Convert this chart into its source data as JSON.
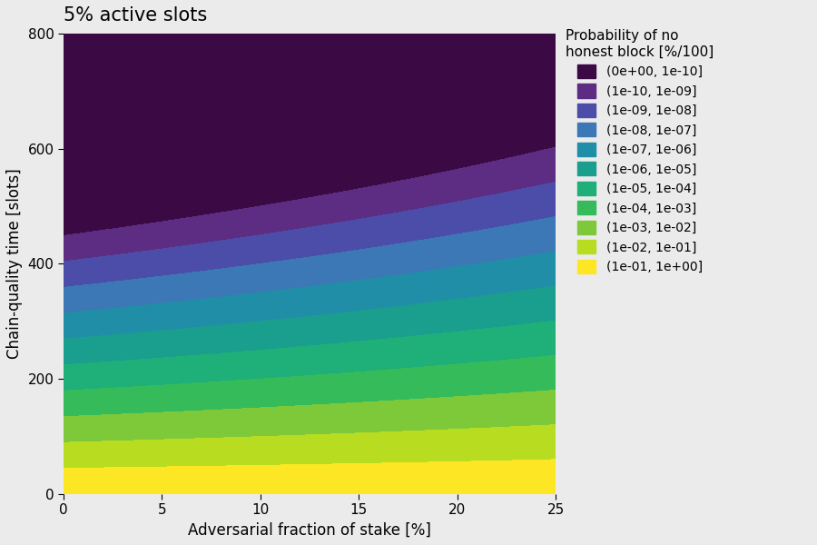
{
  "title": "5% active slots",
  "xlabel": "Adversarial fraction of stake [%]",
  "ylabel": "Chain-quality time [slots]",
  "legend_title": "Probability of no\nhonest block [%/100]",
  "x_min": 0,
  "x_max": 25,
  "y_min": 0,
  "y_max": 800,
  "active_slot_coeff": 0.05,
  "xticks": [
    0,
    5,
    10,
    15,
    20,
    25
  ],
  "yticks": [
    0,
    200,
    400,
    600,
    800
  ],
  "legend_labels": [
    "(0e+00, 1e-10]",
    "(1e-10, 1e-09]",
    "(1e-09, 1e-08]",
    "(1e-08, 1e-07]",
    "(1e-07, 1e-06]",
    "(1e-06, 1e-05]",
    "(1e-05, 1e-04]",
    "(1e-04, 1e-03]",
    "(1e-03, 1e-02]",
    "(1e-02, 1e-01]",
    "(1e-01, 1e+00]"
  ],
  "band_colors": [
    "#3B0A45",
    "#5C2D82",
    "#4B4DA8",
    "#3B78B5",
    "#1F8EA6",
    "#1A9E8E",
    "#1FAF78",
    "#35BB5A",
    "#7EC93A",
    "#B8DC20",
    "#FDE725"
  ],
  "log_thresholds": [
    -10,
    -9,
    -8,
    -7,
    -6,
    -5,
    -4,
    -3,
    -2,
    -1,
    0
  ],
  "background_color": "#EBEBEB",
  "panel_background": "#EBEBEB",
  "grid_color": "#FFFFFF",
  "title_fontsize": 15,
  "label_fontsize": 12,
  "tick_fontsize": 11,
  "legend_fontsize": 10,
  "legend_title_fontsize": 11
}
